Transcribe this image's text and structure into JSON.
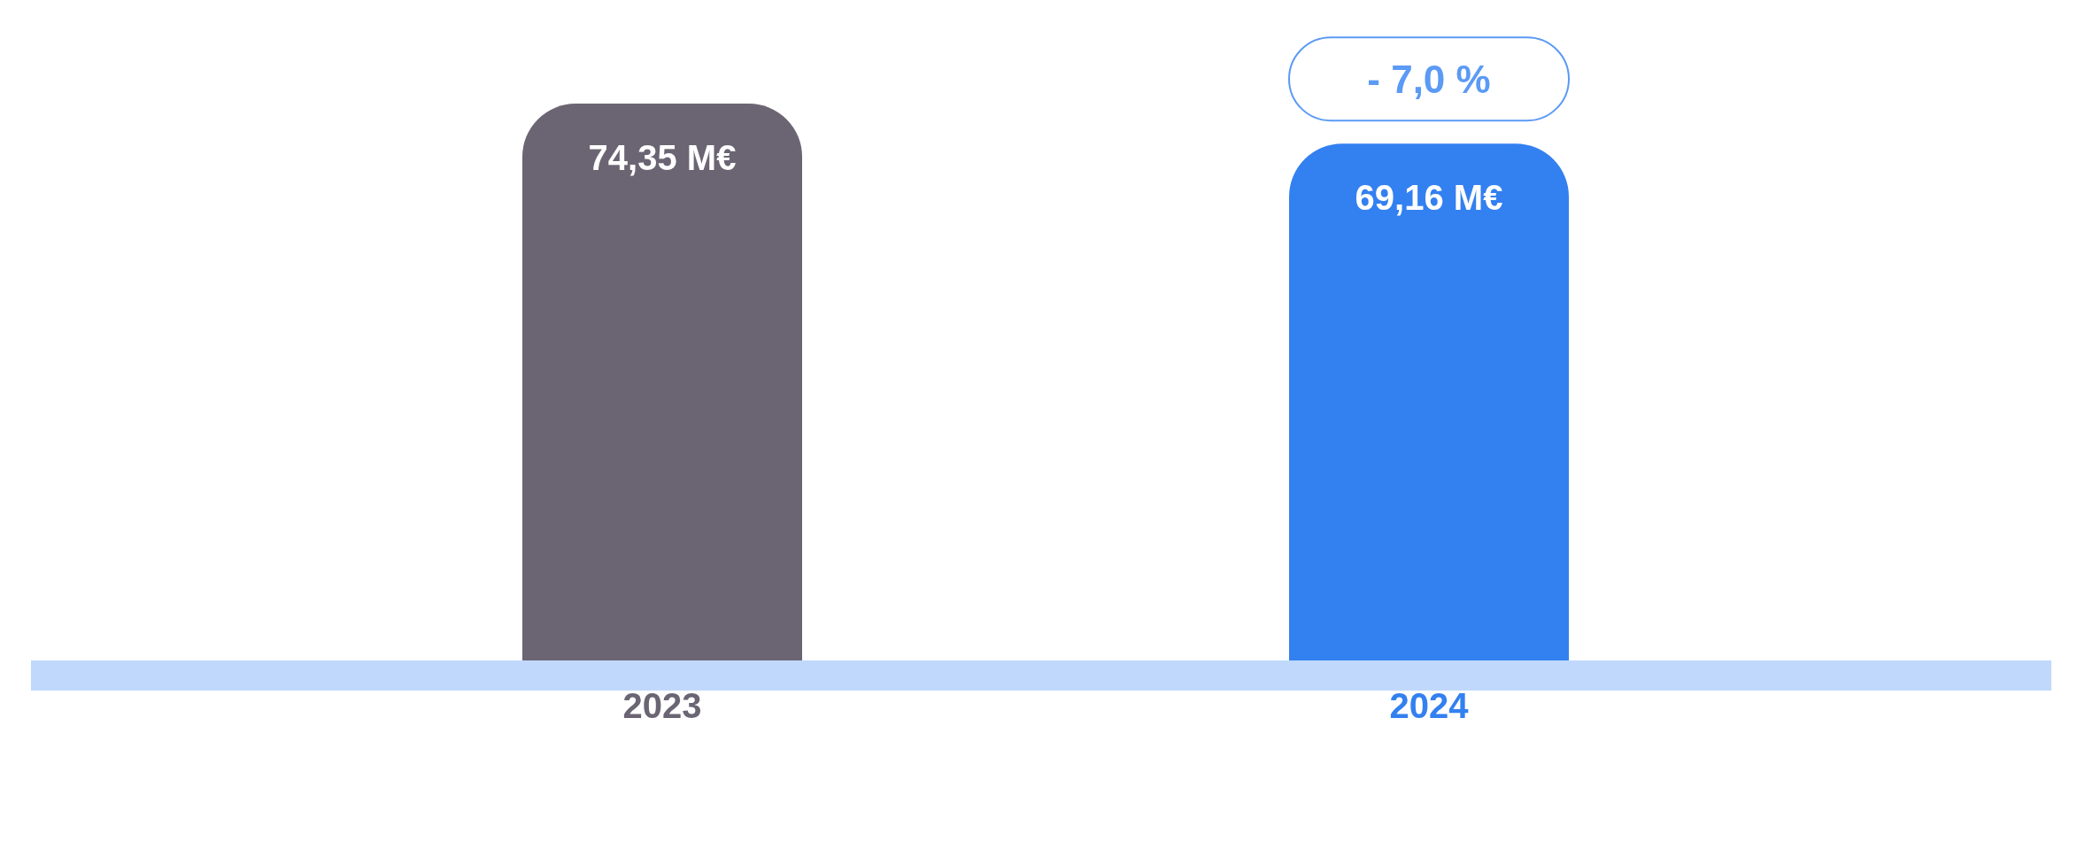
{
  "chart_data": {
    "type": "bar",
    "categories": [
      "2023",
      "2024"
    ],
    "values": [
      74.35,
      69.16
    ],
    "colors": [
      "#6b6573",
      "#3380f0"
    ],
    "value_labels": [
      "74,35 M€",
      "69,16 M€"
    ],
    "annotations": [
      {
        "text": "- 7,0 %",
        "x": "2024",
        "y": 69.16
      }
    ],
    "grid": false,
    "legend": false
  }
}
